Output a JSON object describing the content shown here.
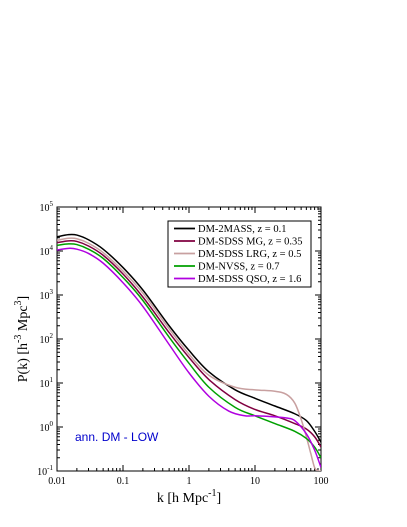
{
  "chart_data": {
    "type": "line",
    "xlabel_main": "k [h Mpc",
    "xlabel_sup": "-1",
    "xlabel_end": "]",
    "ylabel_main": "P(k) [h",
    "ylabel_sup1": "-3",
    "ylabel_mid": " Mpc",
    "ylabel_sup2": "3",
    "ylabel_end": "]",
    "xscale": "log",
    "yscale": "log",
    "xlim": [
      0.01,
      100
    ],
    "ylim": [
      0.1,
      100000
    ],
    "x_ticks": [
      {
        "value": 0.01,
        "label": "0.01"
      },
      {
        "value": 0.1,
        "label": "0.1"
      },
      {
        "value": 1,
        "label": "1"
      },
      {
        "value": 10,
        "label": "10"
      },
      {
        "value": 100,
        "label": "100"
      }
    ],
    "y_ticks": [
      {
        "value": 0.1,
        "base": "10",
        "exp": "-1"
      },
      {
        "value": 1,
        "base": "10",
        "exp": "0"
      },
      {
        "value": 10,
        "base": "10",
        "exp": "1"
      },
      {
        "value": 100,
        "base": "10",
        "exp": "2"
      },
      {
        "value": 1000,
        "base": "10",
        "exp": "3"
      },
      {
        "value": 10000,
        "base": "10",
        "exp": "4"
      },
      {
        "value": 100000,
        "base": "10",
        "exp": "5"
      }
    ],
    "legend_position": "top-right",
    "annotation": {
      "text": "ann. DM - LOW",
      "color": "#0000cc"
    },
    "series": [
      {
        "name": "DM-2MASS, z = 0.1",
        "color": "#000000",
        "x": [
          0.01,
          0.015,
          0.02,
          0.03,
          0.05,
          0.1,
          0.2,
          0.5,
          1,
          2,
          5,
          10,
          20,
          40,
          60,
          80,
          100
        ],
        "y": [
          21000,
          23500,
          23000,
          18000,
          11000,
          4200,
          1300,
          200,
          55,
          18,
          7,
          4.5,
          3,
          2,
          1.4,
          0.8,
          0.45
        ]
      },
      {
        "name": "DM-SDSS MG, z = 0.35",
        "color": "#800040",
        "x": [
          0.01,
          0.015,
          0.02,
          0.03,
          0.05,
          0.1,
          0.2,
          0.5,
          1,
          2,
          5,
          10,
          20,
          40,
          60,
          80,
          100
        ],
        "y": [
          15500,
          17000,
          16500,
          13000,
          8000,
          3000,
          900,
          140,
          38,
          12,
          4.2,
          2.5,
          1.8,
          1.2,
          0.9,
          0.6,
          0.35
        ]
      },
      {
        "name": "DM-SDSS LRG, z = 0.5",
        "color": "#c8a0a0",
        "x": [
          0.01,
          0.015,
          0.02,
          0.03,
          0.05,
          0.1,
          0.2,
          0.5,
          1,
          2,
          5,
          10,
          20,
          30,
          40,
          50,
          60,
          70,
          80,
          90,
          100
        ],
        "y": [
          17500,
          19500,
          19000,
          15000,
          9200,
          3500,
          1100,
          170,
          45,
          15,
          8,
          7,
          6.5,
          5.5,
          3.5,
          1.5,
          0.6,
          0.25,
          0.12,
          0.1,
          0.1
        ]
      },
      {
        "name": "DM-NVSS, z = 0.7",
        "color": "#00a000",
        "x": [
          0.01,
          0.015,
          0.02,
          0.03,
          0.05,
          0.1,
          0.2,
          0.5,
          1,
          2,
          5,
          10,
          20,
          40,
          60,
          80,
          100
        ],
        "y": [
          13500,
          14500,
          14000,
          11000,
          6800,
          2500,
          750,
          110,
          28,
          8,
          2.8,
          1.8,
          1.2,
          0.8,
          0.55,
          0.35,
          0.2
        ]
      },
      {
        "name": "DM-SDSS QSO, z = 1.6",
        "color": "#b000e0",
        "x": [
          0.01,
          0.015,
          0.02,
          0.03,
          0.05,
          0.1,
          0.2,
          0.5,
          1,
          2,
          4,
          7,
          10,
          20,
          30,
          40,
          60,
          80,
          100
        ],
        "y": [
          10500,
          11500,
          11000,
          8800,
          5300,
          1900,
          550,
          75,
          17,
          5,
          2.3,
          1.8,
          1.8,
          1.7,
          1.6,
          1.4,
          0.7,
          0.3,
          0.12
        ]
      }
    ]
  }
}
